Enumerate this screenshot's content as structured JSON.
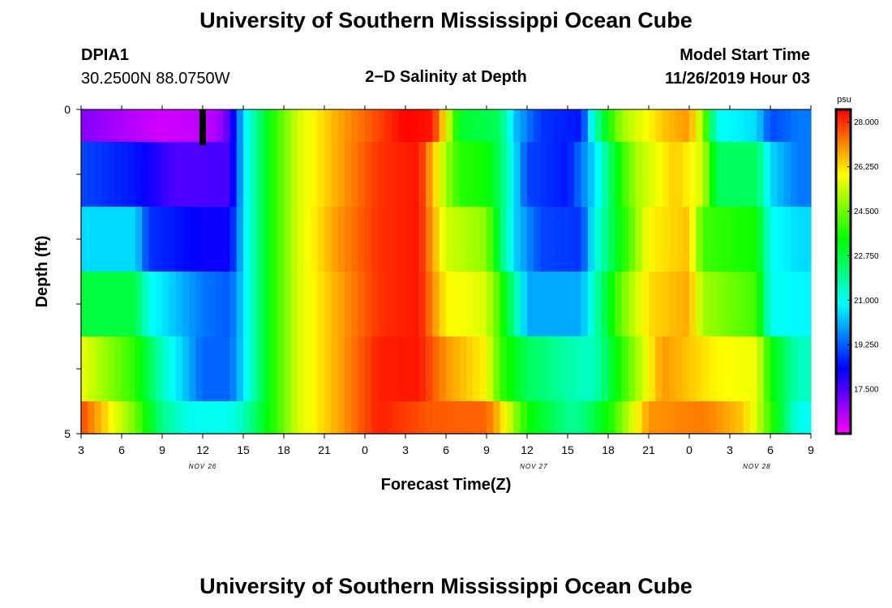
{
  "page": {
    "title_top": "University of Southern Mississippi Ocean Cube",
    "title_bottom": "University of Southern Mississippi Ocean Cube",
    "station_id": "DPIA1",
    "station_coords": "30.2500N 88.0750W",
    "plot_title": "2−D Salinity at Depth",
    "model_start_label": "Model Start Time",
    "model_start_value": "11/26/2019 Hour 03"
  },
  "chart_data": {
    "type": "heatmap",
    "title": "2−D Salinity at Depth",
    "xlabel": "Forecast Time(Z)",
    "ylabel": "Depth (ft)",
    "x_tick_labels": [
      "3",
      "6",
      "9",
      "12",
      "15",
      "18",
      "21",
      "0",
      "3",
      "6",
      "9",
      "12",
      "15",
      "18",
      "21",
      "0",
      "3",
      "6",
      "9"
    ],
    "date_labels": [
      {
        "text": "NOV 26",
        "hour_index": 9
      },
      {
        "text": "NOV 27",
        "hour_index": 33.5
      },
      {
        "text": "NOV 28",
        "hour_index": 50
      }
    ],
    "y_tick_labels": [
      "0",
      "5"
    ],
    "ylim": [
      0,
      5
    ],
    "hours": 54,
    "marker_hour": 9,
    "colorbar": {
      "unit": "psu",
      "min": 15.75,
      "max": 28.5,
      "ticks": [
        "28.000",
        "26.250",
        "24.500",
        "22.750",
        "21.000",
        "19.250",
        "17.500"
      ],
      "tick_values": [
        28.0,
        26.25,
        24.5,
        22.75,
        21.0,
        19.25,
        17.5
      ]
    },
    "depth_levels": [
      {
        "depth_range": [
          0.0,
          0.5
        ],
        "anchors": [
          [
            0,
            17.0
          ],
          [
            6,
            16.2
          ],
          [
            10,
            16.5
          ],
          [
            11,
            17.5
          ],
          [
            12,
            20.5
          ],
          [
            14,
            23.5
          ],
          [
            16,
            25.5
          ],
          [
            19,
            26.8
          ],
          [
            22,
            27.8
          ],
          [
            24,
            28.5
          ],
          [
            26,
            28.3
          ],
          [
            27,
            26.0
          ],
          [
            28,
            23.0
          ],
          [
            31,
            22.5
          ],
          [
            32,
            20.3
          ],
          [
            34,
            18.8
          ],
          [
            37,
            18.5
          ],
          [
            38,
            21.5
          ],
          [
            39,
            23.5
          ],
          [
            40,
            25.0
          ],
          [
            43,
            26.5
          ],
          [
            45,
            27.0
          ],
          [
            46,
            25.0
          ],
          [
            47,
            21.0
          ],
          [
            50,
            20.5
          ],
          [
            51,
            19.0
          ],
          [
            53,
            19.5
          ]
        ]
      },
      {
        "depth_range": [
          0.5,
          1.5
        ],
        "anchors": [
          [
            0,
            19.0
          ],
          [
            4,
            18.5
          ],
          [
            7,
            17.5
          ],
          [
            11,
            17.6
          ],
          [
            12,
            20.5
          ],
          [
            14,
            23.5
          ],
          [
            16,
            25.5
          ],
          [
            19,
            26.8
          ],
          [
            22,
            28.0
          ],
          [
            25,
            28.3
          ],
          [
            27,
            25.0
          ],
          [
            28,
            23.8
          ],
          [
            30,
            23.5
          ],
          [
            31,
            22.5
          ],
          [
            33,
            19.0
          ],
          [
            36,
            18.5
          ],
          [
            38,
            20.5
          ],
          [
            40,
            23.8
          ],
          [
            41,
            25.0
          ],
          [
            44,
            26.5
          ],
          [
            46,
            25.5
          ],
          [
            47,
            22.5
          ],
          [
            50,
            22.5
          ],
          [
            51,
            20.5
          ],
          [
            53,
            19.5
          ]
        ]
      },
      {
        "depth_range": [
          1.5,
          2.5
        ],
        "anchors": [
          [
            0,
            20.5
          ],
          [
            4,
            20.5
          ],
          [
            5,
            18.8
          ],
          [
            9,
            18.2
          ],
          [
            11,
            18.2
          ],
          [
            12,
            20.5
          ],
          [
            14,
            23.5
          ],
          [
            16,
            25.5
          ],
          [
            19,
            27.0
          ],
          [
            22,
            28.0
          ],
          [
            25,
            28.3
          ],
          [
            27,
            25.5
          ],
          [
            30,
            24.8
          ],
          [
            31,
            22.5
          ],
          [
            32,
            20.5
          ],
          [
            34,
            19.0
          ],
          [
            37,
            18.8
          ],
          [
            38,
            21.0
          ],
          [
            40,
            23.5
          ],
          [
            42,
            26.0
          ],
          [
            45,
            26.6
          ],
          [
            46,
            24.0
          ],
          [
            50,
            23.5
          ],
          [
            51,
            21.0
          ],
          [
            53,
            20.5
          ]
        ]
      },
      {
        "depth_range": [
          2.5,
          3.5
        ],
        "anchors": [
          [
            0,
            22.8
          ],
          [
            4,
            22.8
          ],
          [
            5,
            21.0
          ],
          [
            9,
            19.5
          ],
          [
            11,
            19.2
          ],
          [
            12,
            20.5
          ],
          [
            14,
            23.5
          ],
          [
            16,
            25.5
          ],
          [
            19,
            26.8
          ],
          [
            22,
            28.0
          ],
          [
            25,
            28.3
          ],
          [
            27,
            26.0
          ],
          [
            29,
            25.8
          ],
          [
            30,
            25.5
          ],
          [
            31,
            24.0
          ],
          [
            33,
            20.0
          ],
          [
            37,
            20.0
          ],
          [
            38,
            21.5
          ],
          [
            40,
            24.5
          ],
          [
            42,
            26.3
          ],
          [
            45,
            26.8
          ],
          [
            46,
            25.0
          ],
          [
            50,
            24.0
          ],
          [
            51,
            21.0
          ],
          [
            53,
            20.8
          ]
        ]
      },
      {
        "depth_range": [
          3.5,
          4.5
        ],
        "anchors": [
          [
            0,
            25.8
          ],
          [
            2,
            24.8
          ],
          [
            4,
            23.8
          ],
          [
            6,
            21.5
          ],
          [
            9,
            19.3
          ],
          [
            11,
            19.3
          ],
          [
            12,
            20.5
          ],
          [
            14,
            23.5
          ],
          [
            16,
            25.5
          ],
          [
            19,
            26.8
          ],
          [
            22,
            28.2
          ],
          [
            25,
            28.3
          ],
          [
            27,
            27.0
          ],
          [
            30,
            26.0
          ],
          [
            31,
            24.0
          ],
          [
            33,
            22.5
          ],
          [
            37,
            21.5
          ],
          [
            38,
            21.5
          ],
          [
            40,
            23.8
          ],
          [
            43,
            27.0
          ],
          [
            45,
            26.5
          ],
          [
            47,
            26.0
          ],
          [
            50,
            25.8
          ],
          [
            51,
            23.5
          ],
          [
            53,
            21.5
          ]
        ]
      },
      {
        "depth_range": [
          4.5,
          5.0
        ],
        "anchors": [
          [
            0,
            27.8
          ],
          [
            2,
            26.2
          ],
          [
            4,
            24.5
          ],
          [
            6,
            22.0
          ],
          [
            8,
            21.0
          ],
          [
            11,
            21.0
          ],
          [
            12,
            21.5
          ],
          [
            14,
            23.5
          ],
          [
            16,
            25.5
          ],
          [
            19,
            26.8
          ],
          [
            22,
            28.2
          ],
          [
            26,
            27.6
          ],
          [
            30,
            27.5
          ],
          [
            31,
            26.5
          ],
          [
            33,
            23.5
          ],
          [
            36,
            22.0
          ],
          [
            37,
            22.0
          ],
          [
            39,
            23.5
          ],
          [
            42,
            27.0
          ],
          [
            46,
            27.3
          ],
          [
            49,
            26.5
          ],
          [
            50,
            25.5
          ],
          [
            51,
            24.0
          ],
          [
            53,
            21.0
          ]
        ]
      }
    ]
  }
}
